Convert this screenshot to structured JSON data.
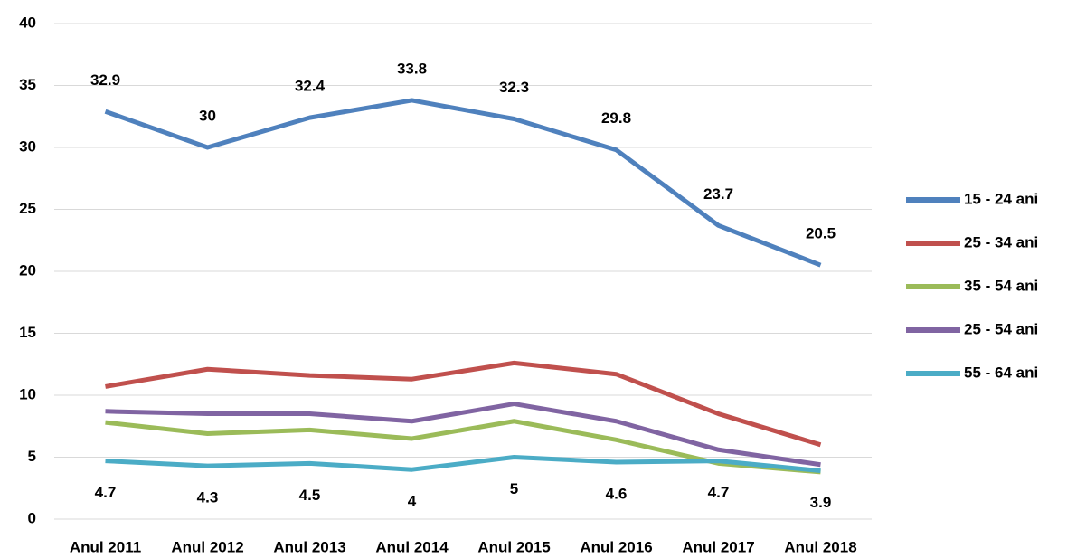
{
  "chart_data": {
    "type": "line",
    "categories": [
      "Anul 2011",
      "Anul 2012",
      "Anul 2013",
      "Anul 2014",
      "Anul 2015",
      "Anul 2016",
      "Anul 2017",
      "Anul 2018"
    ],
    "series": [
      {
        "name": "15 - 24 ani",
        "color": "#4f81bd",
        "values": [
          32.9,
          30,
          32.4,
          33.8,
          32.3,
          29.8,
          23.7,
          20.5
        ],
        "show_labels": "above"
      },
      {
        "name": "25 - 34 ani",
        "color": "#c0504d",
        "values": [
          10.7,
          12.1,
          11.6,
          11.3,
          12.6,
          11.7,
          8.5,
          6.0
        ]
      },
      {
        "name": "35 - 54 ani",
        "color": "#9bbb59",
        "values": [
          7.8,
          6.9,
          7.2,
          6.5,
          7.9,
          6.4,
          4.5,
          3.8
        ]
      },
      {
        "name": "25 - 54 ani",
        "color": "#8064a2",
        "values": [
          8.7,
          8.5,
          8.5,
          7.9,
          9.3,
          7.9,
          5.6,
          4.4
        ]
      },
      {
        "name": "55 - 64 ani",
        "color": "#4bacc6",
        "values": [
          4.7,
          4.3,
          4.5,
          4,
          5,
          4.6,
          4.7,
          3.9
        ],
        "show_labels": "below"
      }
    ],
    "ylim": [
      0,
      40
    ],
    "yticks": [
      0,
      5,
      10,
      15,
      20,
      25,
      30,
      35,
      40
    ],
    "grid": true,
    "legend": "right"
  }
}
